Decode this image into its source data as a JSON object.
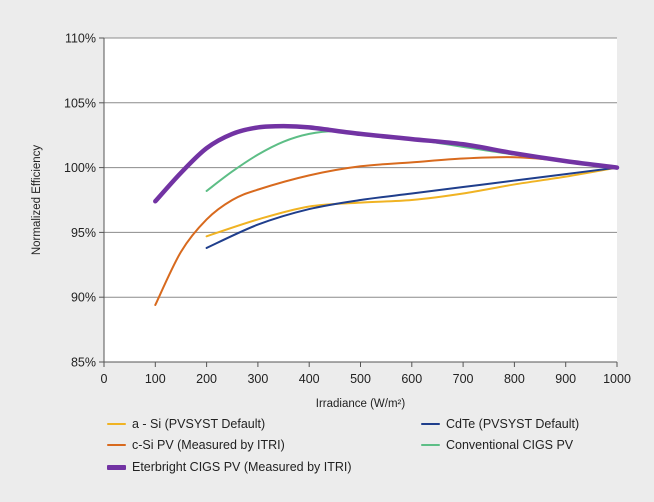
{
  "colors": {
    "background": "#ececec",
    "plot_background": "#ffffff",
    "grid": "#8c8c8c"
  },
  "chart_data": {
    "type": "line",
    "title": "",
    "xlabel": "Irradiance (W/m²)",
    "ylabel": "Normalized Efficiency",
    "xlim": [
      0,
      1000
    ],
    "ylim": [
      85,
      110
    ],
    "x_ticks": [
      0,
      100,
      200,
      300,
      400,
      500,
      600,
      700,
      800,
      900,
      1000
    ],
    "x_tick_labels": [
      "0",
      "100",
      "200",
      "300",
      "400",
      "500",
      "600",
      "700",
      "800",
      "900",
      "1000"
    ],
    "y_ticks": [
      85,
      90,
      95,
      100,
      105,
      110
    ],
    "y_tick_labels": [
      "85%",
      "90%",
      "95%",
      "100%",
      "105%",
      "110%"
    ],
    "grid": "horizontal",
    "legend_position": "bottom",
    "series": [
      {
        "name": "a - Si (PVSYST Default)",
        "color": "#f0b323",
        "width": 2,
        "x": [
          200,
          300,
          400,
          500,
          600,
          700,
          800,
          900,
          1000
        ],
        "y": [
          94.7,
          96.0,
          97.0,
          97.3,
          97.5,
          98.0,
          98.7,
          99.3,
          100.0
        ]
      },
      {
        "name": "CdTe (PVSYST Default)",
        "color": "#1f3e8c",
        "width": 2,
        "x": [
          200,
          300,
          400,
          500,
          600,
          700,
          800,
          900,
          1000
        ],
        "y": [
          93.8,
          95.6,
          96.8,
          97.5,
          98.0,
          98.5,
          99.0,
          99.5,
          100.0
        ]
      },
      {
        "name": "c-Si PV (Measured by ITRI)",
        "color": "#d86a1e",
        "width": 2,
        "x": [
          100,
          150,
          200,
          250,
          300,
          400,
          500,
          600,
          700,
          800,
          900,
          1000
        ],
        "y": [
          89.4,
          93.5,
          96.0,
          97.5,
          98.3,
          99.4,
          100.1,
          100.4,
          100.7,
          100.8,
          100.5,
          100.0
        ]
      },
      {
        "name": "Conventional CIGS PV",
        "color": "#5dbe86",
        "width": 2,
        "x": [
          200,
          250,
          300,
          350,
          400,
          450,
          500,
          600,
          700,
          800,
          900,
          1000
        ],
        "y": [
          98.2,
          99.7,
          101.0,
          102.0,
          102.6,
          102.8,
          102.6,
          102.2,
          101.6,
          101.0,
          100.5,
          100.0
        ]
      },
      {
        "name": "Eterbright CIGS PV (Measured by ITRI)",
        "color": "#7233a3",
        "width": 4.5,
        "x": [
          100,
          150,
          200,
          250,
          300,
          350,
          400,
          500,
          600,
          700,
          800,
          900,
          1000
        ],
        "y": [
          97.4,
          99.6,
          101.5,
          102.6,
          103.1,
          103.2,
          103.1,
          102.6,
          102.2,
          101.8,
          101.1,
          100.5,
          100.0
        ]
      }
    ]
  }
}
